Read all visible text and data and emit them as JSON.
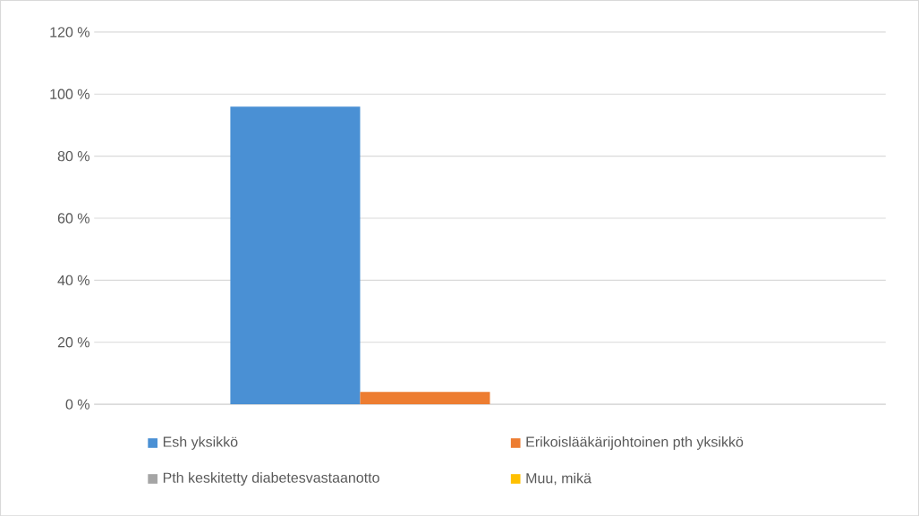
{
  "chart_data": {
    "type": "bar",
    "categories": [
      null
    ],
    "series": [
      {
        "name": "Esh yksikkö",
        "color": "#4a90d4",
        "values": [
          96
        ]
      },
      {
        "name": "Erikoislääkärijohtoinen pth yksikkö",
        "color": "#ed7d31",
        "values": [
          4
        ]
      },
      {
        "name": "Pth keskitetty diabetesvastaanotto",
        "color": "#a5a5a5",
        "values": [
          0
        ]
      },
      {
        "name": "Muu, mikä",
        "color": "#ffc000",
        "values": [
          0
        ]
      }
    ],
    "ylim": [
      0,
      120
    ],
    "yticks": [
      {
        "value": 0,
        "label": "0 %"
      },
      {
        "value": 20,
        "label": "20 %"
      },
      {
        "value": 40,
        "label": "40 %"
      },
      {
        "value": 60,
        "label": "60 %"
      },
      {
        "value": 80,
        "label": "80 %"
      },
      {
        "value": 100,
        "label": "100 %"
      },
      {
        "value": 120,
        "label": "120 %"
      }
    ],
    "grid": "y",
    "legend": "bottom"
  }
}
